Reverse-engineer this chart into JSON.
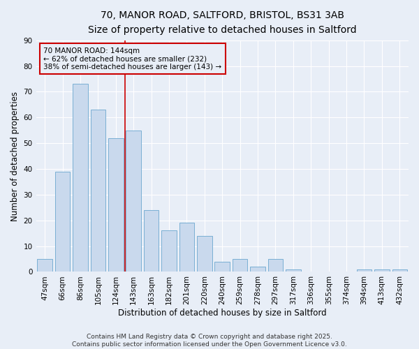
{
  "title1": "70, MANOR ROAD, SALTFORD, BRISTOL, BS31 3AB",
  "title2": "Size of property relative to detached houses in Saltford",
  "xlabel": "Distribution of detached houses by size in Saltford",
  "ylabel": "Number of detached properties",
  "categories": [
    "47sqm",
    "66sqm",
    "86sqm",
    "105sqm",
    "124sqm",
    "143sqm",
    "163sqm",
    "182sqm",
    "201sqm",
    "220sqm",
    "240sqm",
    "259sqm",
    "278sqm",
    "297sqm",
    "317sqm",
    "336sqm",
    "355sqm",
    "374sqm",
    "394sqm",
    "413sqm",
    "432sqm"
  ],
  "values": [
    5,
    39,
    73,
    63,
    52,
    55,
    24,
    16,
    19,
    14,
    4,
    5,
    2,
    5,
    1,
    0,
    0,
    0,
    1,
    1,
    1
  ],
  "bar_color": "#c9d9ed",
  "bar_edge_color": "#7aafd4",
  "vline_index": 5,
  "vline_color": "#cc0000",
  "annotation_line1": "70 MANOR ROAD: 144sqm",
  "annotation_line2": "← 62% of detached houses are smaller (232)",
  "annotation_line3": "38% of semi-detached houses are larger (143) →",
  "annotation_box_color": "#cc0000",
  "bg_color": "#e8eef7",
  "grid_color": "#ffffff",
  "ylim": [
    0,
    90
  ],
  "yticks": [
    0,
    10,
    20,
    30,
    40,
    50,
    60,
    70,
    80,
    90
  ],
  "footer": "Contains HM Land Registry data © Crown copyright and database right 2025.\nContains public sector information licensed under the Open Government Licence v3.0.",
  "title_fontsize": 10,
  "subtitle_fontsize": 9,
  "axis_label_fontsize": 8.5,
  "tick_fontsize": 7.5,
  "annotation_fontsize": 7.5,
  "footer_fontsize": 6.5
}
